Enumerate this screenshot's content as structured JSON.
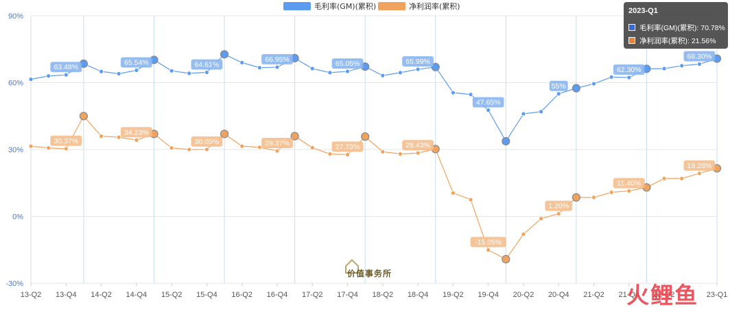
{
  "chart_data": {
    "type": "line",
    "title": "",
    "xlabel": "",
    "ylabel": "",
    "ylim": [
      -30,
      90
    ],
    "y_ticks": [
      -30,
      0,
      30,
      60,
      90
    ],
    "y_tick_labels": [
      "-30%",
      "0%",
      "30%",
      "60%",
      "90%"
    ],
    "x": [
      "13-Q2",
      "13-Q3",
      "13-Q4",
      "14-Q1",
      "14-Q2",
      "14-Q3",
      "14-Q4",
      "15-Q1",
      "15-Q2",
      "15-Q3",
      "15-Q4",
      "16-Q1",
      "16-Q2",
      "16-Q3",
      "16-Q4",
      "17-Q1",
      "17-Q2",
      "17-Q3",
      "17-Q4",
      "18-Q1",
      "18-Q2",
      "18-Q3",
      "18-Q4",
      "19-Q1",
      "19-Q2",
      "19-Q3",
      "19-Q4",
      "20-Q1",
      "20-Q2",
      "20-Q3",
      "20-Q4",
      "21-Q1",
      "21-Q2",
      "21-Q3",
      "21-Q4",
      "22-Q1",
      "22-Q2",
      "22-Q3",
      "22-Q4",
      "23-Q1"
    ],
    "x_tick_labels": [
      "13-Q2",
      "13-Q4",
      "14-Q2",
      "14-Q4",
      "15-Q2",
      "15-Q4",
      "16-Q2",
      "16-Q4",
      "17-Q2",
      "17-Q4",
      "18-Q2",
      "18-Q4",
      "19-Q2",
      "19-Q4",
      "20-Q2",
      "20-Q4",
      "21-Q2",
      "21-Q4",
      "22-Q2",
      "23-Q1"
    ],
    "x_tick_label_indices": [
      0,
      2,
      4,
      6,
      8,
      10,
      12,
      14,
      16,
      18,
      20,
      22,
      24,
      26,
      28,
      30,
      32,
      34,
      36,
      39
    ],
    "legend_position": "top-center",
    "grid": true,
    "series": [
      {
        "name": "毛利率(GM)(累积)",
        "color": "#5b9bf0",
        "values": [
          61.5,
          63,
          63.48,
          68.5,
          65,
          64,
          65.54,
          70.2,
          65.3,
          64.2,
          64.61,
          72.7,
          69,
          66.7,
          66.95,
          71,
          66.3,
          64.5,
          65.05,
          67.2,
          63.2,
          64.5,
          65.99,
          67,
          55.5,
          54.7,
          47.65,
          33.7,
          46,
          47,
          55,
          57.5,
          59.5,
          62.5,
          62.3,
          66.2,
          66.3,
          67.6,
          68.3,
          70.78
        ],
        "data_labels": [
          {
            "i": 2,
            "text": "63.48%"
          },
          {
            "i": 6,
            "text": "65.54%"
          },
          {
            "i": 10,
            "text": "64.61%"
          },
          {
            "i": 14,
            "text": "66.95%"
          },
          {
            "i": 18,
            "text": "65.05%"
          },
          {
            "i": 22,
            "text": "65.99%"
          },
          {
            "i": 26,
            "text": "47.65%"
          },
          {
            "i": 30,
            "text": "55%"
          },
          {
            "i": 34,
            "text": "62.30%"
          },
          {
            "i": 38,
            "text": "68.30%"
          }
        ],
        "highlighted_indices": [
          3,
          7,
          11,
          15,
          19,
          23,
          27,
          31,
          35,
          39
        ]
      },
      {
        "name": "净利润率(累积)",
        "color": "#f0a35e",
        "values": [
          31.5,
          30.7,
          30.37,
          45,
          36,
          35.5,
          34.23,
          37,
          30.7,
          30,
          30.05,
          37,
          31.5,
          31,
          29.37,
          36,
          30.8,
          28,
          27.73,
          35.8,
          29,
          28,
          28.43,
          30.2,
          10.5,
          7.5,
          -15.05,
          -19.2,
          -8,
          -1,
          1.2,
          8.5,
          8.5,
          10.8,
          11.4,
          13,
          17,
          17,
          19.28,
          21.56
        ],
        "data_labels": [
          {
            "i": 2,
            "text": "30.37%"
          },
          {
            "i": 6,
            "text": "34.23%"
          },
          {
            "i": 10,
            "text": "30.05%"
          },
          {
            "i": 14,
            "text": "29.37%"
          },
          {
            "i": 18,
            "text": "27.73%"
          },
          {
            "i": 22,
            "text": "28.43%"
          },
          {
            "i": 26,
            "text": "-15.05%"
          },
          {
            "i": 30,
            "text": "1.20%"
          },
          {
            "i": 34,
            "text": "11.40%"
          },
          {
            "i": 38,
            "text": "19.28%"
          }
        ],
        "highlighted_indices": [
          3,
          7,
          11,
          15,
          19,
          23,
          27,
          31,
          35,
          39
        ]
      }
    ]
  },
  "tooltip": {
    "title": "2023-Q1",
    "rows": [
      {
        "label": "毛利率(GM)(累积): 70.78%",
        "color": "#3a66d6"
      },
      {
        "label": "净利润率(累积): 21.56%",
        "color": "#e8823a"
      }
    ]
  },
  "watermark": {
    "text": "价值事务所"
  },
  "brand": {
    "text": "火鲤鱼"
  }
}
